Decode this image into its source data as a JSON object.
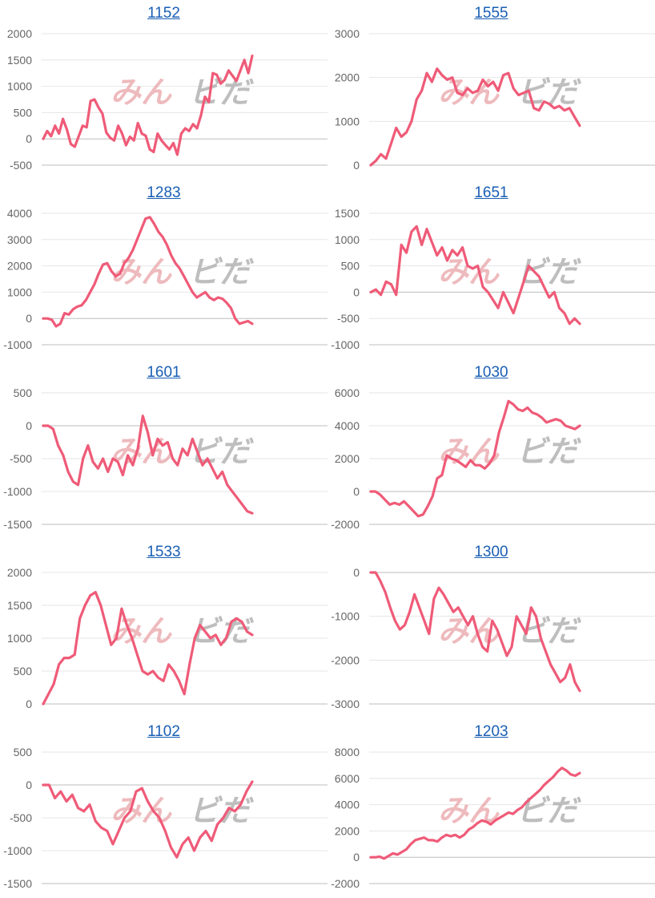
{
  "line_color": "#ef5b78",
  "grid_color": "#e6e6e6",
  "axis_color": "#bdbdbd",
  "watermark": {
    "left": "みん",
    "right": "ビだ"
  },
  "chart_data": [
    {
      "type": "line",
      "title": "1152",
      "ylim": [
        -500,
        2000
      ],
      "yticks": [
        -500,
        0,
        500,
        1000,
        1500,
        2000
      ],
      "values": [
        0,
        150,
        50,
        250,
        100,
        380,
        180,
        -100,
        -150,
        50,
        250,
        220,
        720,
        750,
        600,
        480,
        120,
        20,
        -30,
        250,
        100,
        -120,
        40,
        -30,
        300,
        100,
        60,
        -200,
        -250,
        100,
        -30,
        -120,
        -200,
        -80,
        -300,
        100,
        200,
        150,
        280,
        200,
        450,
        800,
        700,
        1250,
        1220,
        1050,
        1120,
        1300,
        1200,
        1100,
        1300,
        1500,
        1250,
        1580
      ]
    },
    {
      "type": "line",
      "title": "1555",
      "ylim": [
        0,
        3000
      ],
      "yticks": [
        0,
        1000,
        2000,
        3000
      ],
      "values": [
        0,
        100,
        250,
        150,
        500,
        850,
        650,
        750,
        1000,
        1500,
        1700,
        2100,
        1900,
        2200,
        2050,
        1950,
        2000,
        1650,
        1600,
        1750,
        1650,
        1700,
        1950,
        1800,
        1900,
        1700,
        2050,
        2100,
        1750,
        1600,
        1650,
        1700,
        1300,
        1250,
        1450,
        1400,
        1300,
        1350,
        1250,
        1300,
        1100,
        900
      ]
    },
    {
      "type": "line",
      "title": "1283",
      "ylim": [
        -1000,
        4000
      ],
      "yticks": [
        -1000,
        0,
        1000,
        2000,
        3000,
        4000
      ],
      "values": [
        0,
        0,
        -50,
        -300,
        -200,
        200,
        150,
        350,
        450,
        500,
        700,
        1000,
        1300,
        1700,
        2050,
        2100,
        1800,
        1600,
        1700,
        2100,
        2300,
        2600,
        3000,
        3400,
        3800,
        3850,
        3600,
        3300,
        3100,
        2800,
        2400,
        2100,
        1900,
        1600,
        1300,
        1000,
        800,
        900,
        1000,
        800,
        700,
        800,
        750,
        600,
        400,
        0,
        -200,
        -150,
        -100,
        -200
      ]
    },
    {
      "type": "line",
      "title": "1651",
      "ylim": [
        -1000,
        1500
      ],
      "yticks": [
        -1000,
        -500,
        0,
        500,
        1000,
        1500
      ],
      "values": [
        0,
        50,
        -50,
        200,
        150,
        -50,
        900,
        750,
        1150,
        1250,
        900,
        1200,
        950,
        700,
        850,
        600,
        800,
        700,
        850,
        500,
        450,
        500,
        100,
        0,
        -150,
        -300,
        0,
        -200,
        -400,
        -100,
        200,
        500,
        400,
        300,
        100,
        -100,
        0,
        -300,
        -400,
        -600,
        -500,
        -600
      ]
    },
    {
      "type": "line",
      "title": "1601",
      "ylim": [
        -1500,
        500
      ],
      "yticks": [
        -1500,
        -1000,
        -500,
        0,
        500
      ],
      "values": [
        0,
        0,
        -50,
        -300,
        -450,
        -700,
        -850,
        -900,
        -500,
        -300,
        -550,
        -650,
        -500,
        -700,
        -500,
        -550,
        -750,
        -450,
        -600,
        -350,
        150,
        -100,
        -450,
        -200,
        -300,
        -250,
        -500,
        -600,
        -350,
        -450,
        -200,
        -400,
        -600,
        -500,
        -650,
        -800,
        -700,
        -900,
        -1000,
        -1100,
        -1200,
        -1300,
        -1330
      ]
    },
    {
      "type": "line",
      "title": "1030",
      "ylim": [
        -2000,
        6000
      ],
      "yticks": [
        -2000,
        0,
        2000,
        4000,
        6000
      ],
      "values": [
        0,
        0,
        -200,
        -500,
        -800,
        -700,
        -800,
        -600,
        -900,
        -1200,
        -1500,
        -1400,
        -900,
        -300,
        800,
        1000,
        2200,
        2000,
        1900,
        1700,
        1500,
        1900,
        1600,
        1600,
        1400,
        1700,
        2200,
        3600,
        4500,
        5500,
        5300,
        5000,
        4900,
        5100,
        4800,
        4700,
        4500,
        4200,
        4300,
        4400,
        4300,
        4000,
        3900,
        3800,
        4000
      ]
    },
    {
      "type": "line",
      "title": "1533",
      "ylim": [
        0,
        2000
      ],
      "yticks": [
        0,
        500,
        1000,
        1500,
        2000
      ],
      "values": [
        0,
        150,
        300,
        600,
        700,
        700,
        750,
        1300,
        1500,
        1650,
        1700,
        1500,
        1200,
        900,
        1000,
        1450,
        1200,
        1000,
        750,
        500,
        450,
        500,
        400,
        350,
        600,
        500,
        350,
        150,
        600,
        1000,
        1200,
        1100,
        1000,
        1050,
        900,
        1000,
        1250,
        1300,
        1250,
        1100,
        1050
      ]
    },
    {
      "type": "line",
      "title": "1300",
      "ylim": [
        -3000,
        0
      ],
      "yticks": [
        -3000,
        -2000,
        -1000,
        0
      ],
      "values": [
        0,
        0,
        -200,
        -450,
        -800,
        -1100,
        -1300,
        -1200,
        -900,
        -500,
        -800,
        -1100,
        -1400,
        -600,
        -350,
        -500,
        -700,
        -900,
        -800,
        -1000,
        -1200,
        -1000,
        -1400,
        -1700,
        -1800,
        -1100,
        -1300,
        -1600,
        -1900,
        -1700,
        -1000,
        -1200,
        -1400,
        -800,
        -1000,
        -1500,
        -1800,
        -2100,
        -2300,
        -2500,
        -2400,
        -2100,
        -2500,
        -2700
      ]
    },
    {
      "type": "line",
      "title": "1102",
      "ylim": [
        -1500,
        500
      ],
      "yticks": [
        -1500,
        -1000,
        -500,
        0,
        500
      ],
      "values": [
        0,
        0,
        -200,
        -100,
        -250,
        -150,
        -350,
        -400,
        -300,
        -550,
        -650,
        -700,
        -900,
        -700,
        -500,
        -400,
        -100,
        -50,
        -250,
        -400,
        -500,
        -700,
        -950,
        -1100,
        -900,
        -800,
        -1000,
        -800,
        -700,
        -850,
        -600,
        -500,
        -350,
        -400,
        -300,
        -100,
        50
      ]
    },
    {
      "type": "line",
      "title": "1203",
      "ylim": [
        -2000,
        8000
      ],
      "yticks": [
        -2000,
        0,
        2000,
        4000,
        6000,
        8000
      ],
      "values": [
        0,
        0,
        50,
        -100,
        100,
        300,
        200,
        400,
        600,
        1000,
        1300,
        1400,
        1500,
        1300,
        1300,
        1200,
        1500,
        1700,
        1600,
        1700,
        1500,
        1700,
        2100,
        2300,
        2600,
        2800,
        2700,
        2500,
        2800,
        3000,
        3200,
        3400,
        3300,
        3600,
        3800,
        4200,
        4500,
        4800,
        5100,
        5500,
        5800,
        6100,
        6500,
        6800,
        6600,
        6300,
        6200,
        6400
      ]
    }
  ]
}
